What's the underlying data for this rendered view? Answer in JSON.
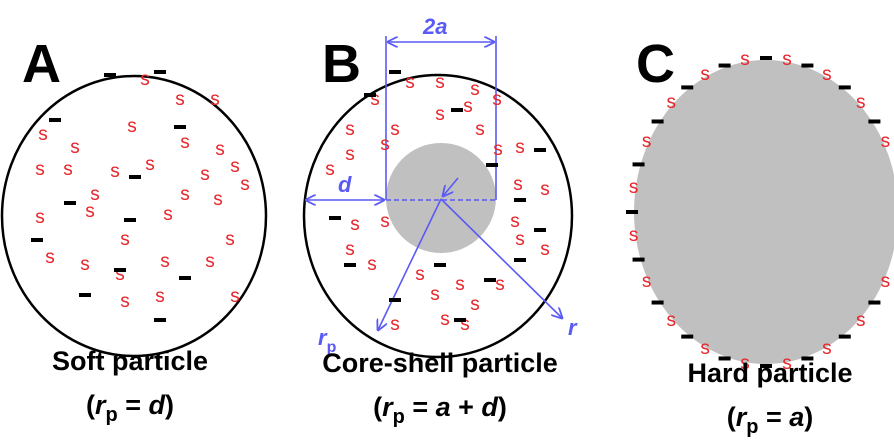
{
  "panels": [
    {
      "letter": "A",
      "caption": "Soft particle",
      "formula": [
        "(",
        "r",
        "p",
        " = ",
        "d",
        ")"
      ]
    },
    {
      "letter": "B",
      "caption": "Core-shell particle",
      "formula": [
        "(",
        "r",
        "p",
        " = ",
        "a",
        " + ",
        "d",
        ")"
      ]
    },
    {
      "letter": "C",
      "caption": "Hard particle",
      "formula": [
        "(",
        "r",
        "p",
        " = ",
        "a",
        ")"
      ]
    }
  ],
  "annotations": {
    "width": "2a",
    "shell": "d",
    "radius_p": "r",
    "radius_p_sub": "p",
    "radius": "r"
  },
  "counterion_symbol": "s"
}
